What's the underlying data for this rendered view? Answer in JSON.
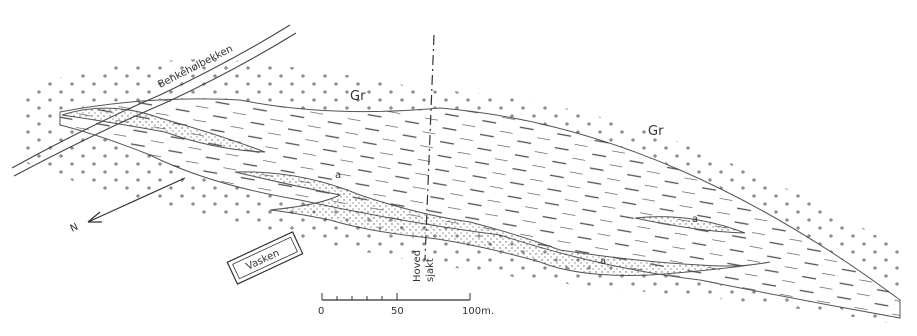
{
  "labels": {
    "stream": "Benkehølbekken",
    "granite_1": "Gr",
    "granite_2": "Gr",
    "shaft_1": "Hoved",
    "shaft_2": "sjakt",
    "building": "Vasken",
    "north": "N",
    "ore_1": "a",
    "ore_2": "a",
    "ore_3": "a"
  },
  "scale_bar": {
    "ticks": [
      "0",
      "50",
      "100m."
    ]
  },
  "colors": {
    "ink": "#4a4a4a",
    "background": "#ffffff"
  }
}
